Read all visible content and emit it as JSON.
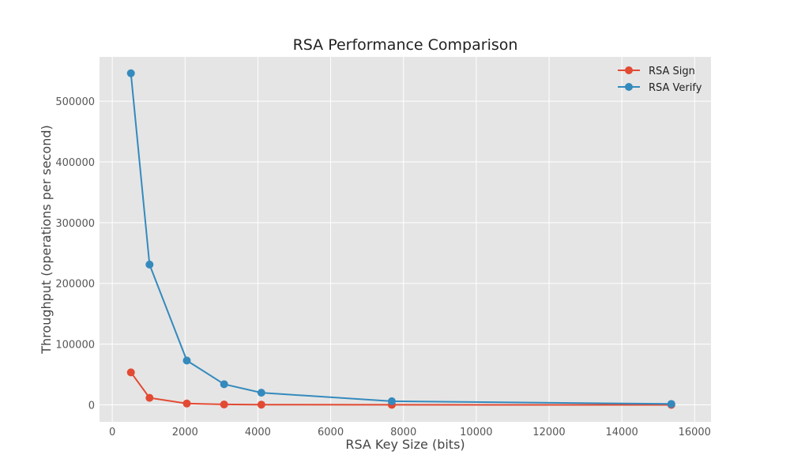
{
  "chart_data": {
    "type": "line",
    "title": "RSA Performance Comparison",
    "xlabel": "RSA Key Size (bits)",
    "ylabel": "Throughput (operations per second)",
    "xlim": [
      -350,
      16450
    ],
    "ylim": [
      -28000,
      573000
    ],
    "xticks": [
      0,
      2000,
      4000,
      6000,
      8000,
      10000,
      12000,
      14000,
      16000
    ],
    "yticks": [
      0,
      100000,
      200000,
      300000,
      400000,
      500000
    ],
    "grid": true,
    "legend_position": "top-right",
    "series": [
      {
        "name": "RSA Sign",
        "color": "#e24a33",
        "x": [
          512,
          1024,
          2048,
          3072,
          4096,
          7680,
          15360
        ],
        "y": [
          53500,
          11500,
          2200,
          700,
          330,
          55,
          10
        ]
      },
      {
        "name": "RSA Verify",
        "color": "#348abd",
        "x": [
          512,
          1024,
          2048,
          3072,
          4096,
          7680,
          15360
        ],
        "y": [
          546000,
          231000,
          73000,
          34000,
          20000,
          6000,
          1500
        ]
      }
    ]
  }
}
